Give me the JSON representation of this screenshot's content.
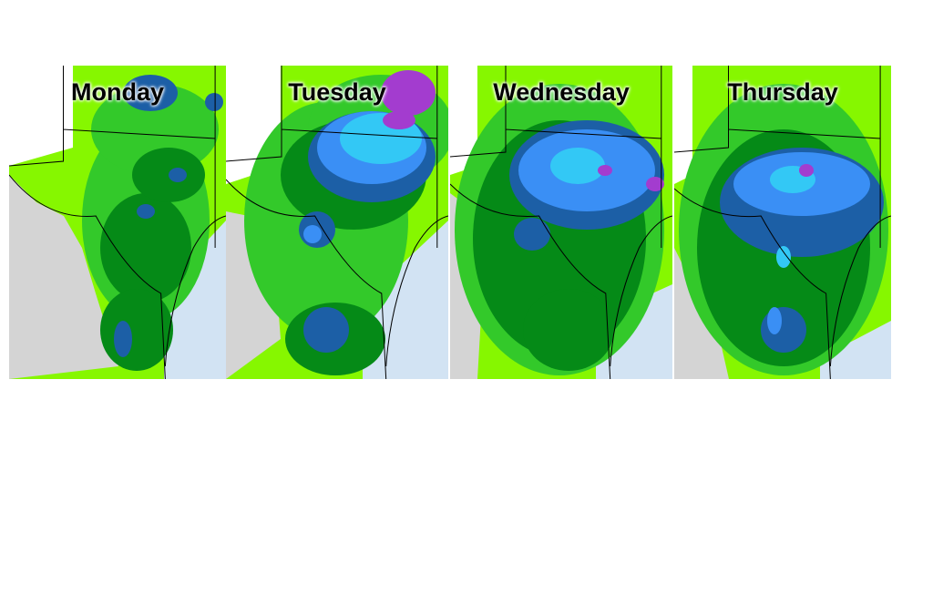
{
  "panels": [
    {
      "label": "Monday"
    },
    {
      "label": "Tuesday"
    },
    {
      "label": "Wednesday"
    },
    {
      "label": "Thursday"
    }
  ]
}
